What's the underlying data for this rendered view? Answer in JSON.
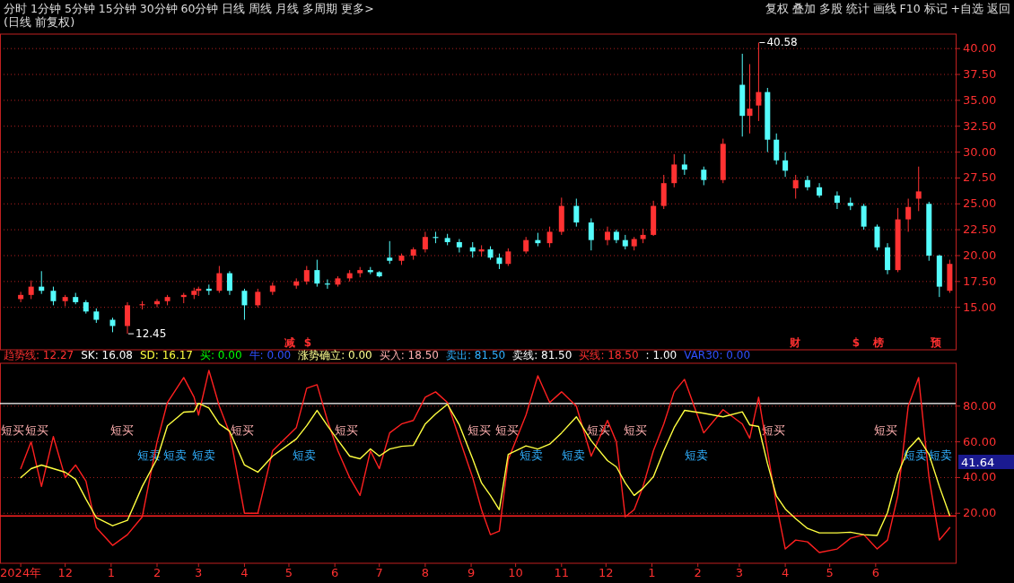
{
  "chart_data": [
    {
      "type": "candlestick",
      "title": "(日线 前复权)",
      "x": [
        "2024-11-01",
        "2024-11-08",
        "2024-11-15",
        "2024-11-23",
        "2024-12-01",
        "2024-12-08",
        "2024-12-15",
        "2024-12-22",
        "2025-01-02",
        "2025-01-12",
        "2025-01-22",
        "2025-02-01",
        "2025-02-08",
        "2025-02-19",
        "2025-02-26",
        "2025-03-01",
        "2025-03-08",
        "2025-03-15",
        "2025-03-22",
        "2025-04-01",
        "2025-04-10",
        "2025-04-20",
        "2025-05-06",
        "2025-05-13",
        "2025-05-20",
        "2025-05-27",
        "2025-06-03",
        "2025-06-11",
        "2025-06-18",
        "2025-06-25",
        "2025-07-01",
        "2025-07-08",
        "2025-07-16",
        "2025-07-24",
        "2025-08-01",
        "2025-08-08",
        "2025-08-16",
        "2025-08-24",
        "2025-09-02",
        "2025-09-08",
        "2025-09-14",
        "2025-09-20",
        "2025-09-26",
        "2025-10-08",
        "2025-10-16",
        "2025-10-24",
        "2025-11-01",
        "2025-11-11",
        "2025-11-21",
        "2025-12-02",
        "2025-12-08",
        "2025-12-14",
        "2025-12-20",
        "2025-12-26",
        "2026-01-02",
        "2026-01-09",
        "2026-01-16",
        "2026-01-23",
        "2026-02-05",
        "2026-02-18",
        "2026-03-03",
        "2026-03-08",
        "2026-03-14",
        "2026-03-20",
        "2026-03-26",
        "2026-04-01",
        "2026-04-08",
        "2026-04-16",
        "2026-04-24",
        "2026-05-06",
        "2026-05-15",
        "2026-05-24",
        "2026-06-02",
        "2026-06-09",
        "2026-06-16",
        "2026-06-23",
        "2026-06-30",
        "2026-07-07",
        "2026-07-14",
        "2026-07-21"
      ],
      "ohlc": [
        [
          15.8,
          16.5,
          15.5,
          16.2
        ],
        [
          16.2,
          17.6,
          15.8,
          17.0
        ],
        [
          17.0,
          18.5,
          16.3,
          16.6
        ],
        [
          16.6,
          17.0,
          15.2,
          15.6
        ],
        [
          15.6,
          16.2,
          15.1,
          16.0
        ],
        [
          16.0,
          16.4,
          15.3,
          15.5
        ],
        [
          15.5,
          15.7,
          14.4,
          14.6
        ],
        [
          14.6,
          14.9,
          13.5,
          13.8
        ],
        [
          13.8,
          14.0,
          12.6,
          13.2
        ],
        [
          13.2,
          15.5,
          12.45,
          15.2
        ],
        [
          15.2,
          15.6,
          14.8,
          15.3
        ],
        [
          15.3,
          15.8,
          15.0,
          15.6
        ],
        [
          15.6,
          16.2,
          15.2,
          16.0
        ],
        [
          16.0,
          16.4,
          15.4,
          16.2
        ],
        [
          16.2,
          16.9,
          15.8,
          16.6
        ],
        [
          16.6,
          17.0,
          16.1,
          16.8
        ],
        [
          16.8,
          17.2,
          16.2,
          16.6
        ],
        [
          16.6,
          19.0,
          16.4,
          18.3
        ],
        [
          18.3,
          18.5,
          16.2,
          16.6
        ],
        [
          16.6,
          16.8,
          13.8,
          15.2
        ],
        [
          15.2,
          16.8,
          15.0,
          16.5
        ],
        [
          16.5,
          17.4,
          16.2,
          17.1
        ],
        [
          17.1,
          17.8,
          16.8,
          17.5
        ],
        [
          17.5,
          19.0,
          17.2,
          18.6
        ],
        [
          18.6,
          19.6,
          17.0,
          17.3
        ],
        [
          17.3,
          17.7,
          16.8,
          17.2
        ],
        [
          17.2,
          18.0,
          17.0,
          17.8
        ],
        [
          17.8,
          18.6,
          17.5,
          18.3
        ],
        [
          18.3,
          18.9,
          17.9,
          18.6
        ],
        [
          18.6,
          18.9,
          18.2,
          18.4
        ],
        [
          18.4,
          18.5,
          17.9,
          18.0
        ],
        [
          19.8,
          21.4,
          19.2,
          19.5
        ],
        [
          19.5,
          20.2,
          19.1,
          20.0
        ],
        [
          20.0,
          20.8,
          19.6,
          20.6
        ],
        [
          20.6,
          22.3,
          20.3,
          21.8
        ],
        [
          21.8,
          22.3,
          21.2,
          21.7
        ],
        [
          21.7,
          22.1,
          21.0,
          21.3
        ],
        [
          21.3,
          21.6,
          20.3,
          20.8
        ],
        [
          20.8,
          21.3,
          19.8,
          20.4
        ],
        [
          20.4,
          21.0,
          19.9,
          20.6
        ],
        [
          20.6,
          20.9,
          19.6,
          19.8
        ],
        [
          19.8,
          20.2,
          18.7,
          19.2
        ],
        [
          19.2,
          20.7,
          19.0,
          20.4
        ],
        [
          20.4,
          21.8,
          20.2,
          21.5
        ],
        [
          21.5,
          22.2,
          20.9,
          21.2
        ],
        [
          21.2,
          22.8,
          20.8,
          22.3
        ],
        [
          22.3,
          25.6,
          22.0,
          24.8
        ],
        [
          24.8,
          25.5,
          22.8,
          23.2
        ],
        [
          23.2,
          23.6,
          20.5,
          21.5
        ],
        [
          21.5,
          22.8,
          21.0,
          22.3
        ],
        [
          22.3,
          22.5,
          21.2,
          21.5
        ],
        [
          21.5,
          22.0,
          20.6,
          20.9
        ],
        [
          20.9,
          21.8,
          20.5,
          21.6
        ],
        [
          21.6,
          22.6,
          21.2,
          22.0
        ],
        [
          22.0,
          25.3,
          21.9,
          24.8
        ],
        [
          24.8,
          27.8,
          24.5,
          27.0
        ],
        [
          27.0,
          29.8,
          26.6,
          28.8
        ],
        [
          28.8,
          29.8,
          27.8,
          28.3
        ],
        [
          28.3,
          28.6,
          26.8,
          27.3
        ],
        [
          27.3,
          31.3,
          27.0,
          30.8
        ],
        [
          36.5,
          39.5,
          31.5,
          33.5
        ],
        [
          33.5,
          38.5,
          31.8,
          34.2
        ],
        [
          34.5,
          40.58,
          33.0,
          35.8
        ],
        [
          35.8,
          36.2,
          30.0,
          31.2
        ],
        [
          31.2,
          31.8,
          28.8,
          29.2
        ],
        [
          29.2,
          30.0,
          27.6,
          28.2
        ],
        [
          26.5,
          27.8,
          25.5,
          27.3
        ],
        [
          27.3,
          27.7,
          26.3,
          26.6
        ],
        [
          26.6,
          27.0,
          25.6,
          25.8
        ],
        [
          25.8,
          26.2,
          24.5,
          25.1
        ],
        [
          25.1,
          25.6,
          24.4,
          24.8
        ],
        [
          24.8,
          25.0,
          22.5,
          22.8
        ],
        [
          22.8,
          23.0,
          20.5,
          20.8
        ],
        [
          20.8,
          21.2,
          18.2,
          18.6
        ],
        [
          18.6,
          24.6,
          18.4,
          23.5
        ],
        [
          23.5,
          25.5,
          22.3,
          24.7
        ],
        [
          25.5,
          28.6,
          24.3,
          26.2
        ],
        [
          25.0,
          25.2,
          19.5,
          20.0
        ],
        [
          20.0,
          20.1,
          16.0,
          17.0
        ],
        [
          16.6,
          19.6,
          16.4,
          19.2
        ]
      ],
      "colors": [
        "#ff3232",
        "#ff3232",
        "#54fcfc",
        "#54fcfc",
        "#ff3232",
        "#54fcfc",
        "#54fcfc",
        "#54fcfc",
        "#54fcfc",
        "#ff3232",
        "#ff3232",
        "#ff3232",
        "#ff3232",
        "#ff3232",
        "#ff3232",
        "#ff3232",
        "#54fcfc",
        "#ff3232",
        "#54fcfc",
        "#54fcfc",
        "#ff3232",
        "#ff3232",
        "#ff3232",
        "#ff3232",
        "#54fcfc",
        "#54fcfc",
        "#ff3232",
        "#ff3232",
        "#ff3232",
        "#54fcfc",
        "#54fcfc",
        "#54fcfc",
        "#ff3232",
        "#ff3232",
        "#ff3232",
        "#54fcfc",
        "#54fcfc",
        "#54fcfc",
        "#54fcfc",
        "#ff3232",
        "#54fcfc",
        "#54fcfc",
        "#ff3232",
        "#ff3232",
        "#54fcfc",
        "#ff3232",
        "#ff3232",
        "#54fcfc",
        "#54fcfc",
        "#ff3232",
        "#54fcfc",
        "#54fcfc",
        "#ff3232",
        "#ff3232",
        "#ff3232",
        "#ff3232",
        "#ff3232",
        "#54fcfc",
        "#54fcfc",
        "#ff3232",
        "#54fcfc",
        "#ff3232",
        "#ff3232",
        "#54fcfc",
        "#54fcfc",
        "#54fcfc",
        "#ff3232",
        "#54fcfc",
        "#54fcfc",
        "#54fcfc",
        "#54fcfc",
        "#54fcfc",
        "#54fcfc",
        "#54fcfc",
        "#ff3232",
        "#ff3232",
        "#ff3232",
        "#54fcfc",
        "#54fcfc",
        "#ff3232"
      ],
      "xlim": [
        "2024-10-18",
        "2026-07-25"
      ],
      "ylim": [
        10.9,
        41.4
      ],
      "yticks": [
        {
          "value": 15,
          "label": "15.00"
        },
        {
          "value": 17.5,
          "label": "17.50"
        },
        {
          "value": 20,
          "label": "20.00"
        },
        {
          "value": 22.5,
          "label": "22.50"
        },
        {
          "value": 25,
          "label": "25.00"
        },
        {
          "value": 27.5,
          "label": "27.50"
        },
        {
          "value": 30,
          "label": "30.00"
        },
        {
          "value": 32.5,
          "label": "32.50"
        },
        {
          "value": 35,
          "label": "35.00"
        },
        {
          "value": 37.5,
          "label": "37.50"
        },
        {
          "value": 40,
          "label": "40.00"
        }
      ],
      "grid": "y",
      "tick_labels": "y",
      "annotations": [
        "分时  1分钟  5分钟  15分钟  30分钟  60分钟  日线  周线  月线  多周期  更多>",
        "复权  叠加  多股  统计  画线  F10  标记  +自选  返回",
        "减",
        "$",
        "财",
        "$",
        "榜",
        "预",
        {
          "text": "40.58",
          "x": "2026-03-14",
          "y": 40.58
        },
        {
          "text": "12.45",
          "x": "2025-01-12",
          "y": 12.45
        }
      ]
    },
    {
      "type": "line",
      "x": [
        "2024-11-01",
        "2024-11-08",
        "2024-11-15",
        "2024-11-23",
        "2024-12-01",
        "2024-12-08",
        "2024-12-15",
        "2024-12-22",
        "2025-01-02",
        "2025-01-12",
        "2025-01-22",
        "2025-02-01",
        "2025-02-08",
        "2025-02-19",
        "2025-02-26",
        "2025-03-01",
        "2025-03-08",
        "2025-03-15",
        "2025-03-22",
        "2025-04-01",
        "2025-04-10",
        "2025-04-20",
        "2025-05-06",
        "2025-05-13",
        "2025-05-20",
        "2025-05-27",
        "2025-06-03",
        "2025-06-11",
        "2025-06-18",
        "2025-06-25",
        "2025-07-01",
        "2025-07-08",
        "2025-07-16",
        "2025-07-24",
        "2025-08-01",
        "2025-08-08",
        "2025-08-16",
        "2025-08-24",
        "2025-09-02",
        "2025-09-08",
        "2025-09-14",
        "2025-09-20",
        "2025-09-26",
        "2025-10-08",
        "2025-10-16",
        "2025-10-24",
        "2025-11-01",
        "2025-11-11",
        "2025-11-21",
        "2025-12-02",
        "2025-12-08",
        "2025-12-14",
        "2025-12-20",
        "2025-12-26",
        "2026-01-02",
        "2026-01-09",
        "2026-01-16",
        "2026-01-23",
        "2026-02-05",
        "2026-02-18",
        "2026-03-03",
        "2026-03-08",
        "2026-03-14",
        "2026-03-20",
        "2026-03-26",
        "2026-04-01",
        "2026-04-08",
        "2026-04-16",
        "2026-04-24",
        "2026-05-06",
        "2026-05-15",
        "2026-05-24",
        "2026-06-02",
        "2026-06-09",
        "2026-06-16",
        "2026-06-23",
        "2026-06-30",
        "2026-07-07",
        "2026-07-14",
        "2026-07-21"
      ],
      "series": [
        {
          "color": "#ff2020",
          "values": [
            45,
            60,
            35,
            63,
            40,
            47,
            38,
            12,
            2,
            8,
            18,
            60,
            82,
            96,
            85,
            75,
            100,
            80,
            65,
            20,
            20,
            55,
            68,
            90,
            92,
            72,
            55,
            40,
            30,
            55,
            45,
            65,
            70,
            72,
            85,
            88,
            82,
            62,
            40,
            22,
            8,
            10,
            50,
            75,
            97,
            82,
            88,
            80,
            52,
            72,
            60,
            18,
            22,
            35,
            55,
            70,
            88,
            95,
            65,
            78,
            70,
            62,
            85,
            55,
            25,
            0,
            5,
            4,
            -2,
            0,
            6,
            8,
            0,
            5,
            30,
            80,
            96,
            40,
            5,
            12
          ]
        },
        {
          "color": "#ffff40",
          "values": [
            40,
            45,
            47,
            45,
            43,
            39,
            28,
            17.6,
            13,
            16,
            35,
            50.5,
            69,
            76.6,
            77,
            81.6,
            79,
            70,
            66,
            47,
            43,
            52,
            61.6,
            69,
            77.6,
            69,
            61,
            52,
            50.5,
            56,
            52,
            56,
            57.5,
            58,
            70,
            75.6,
            81,
            69.5,
            50.5,
            37,
            30,
            22,
            53,
            57.7,
            56,
            58.7,
            65,
            74,
            60.6,
            49.5,
            46,
            37,
            30,
            34,
            40.5,
            55,
            68,
            77.6,
            76,
            74,
            76.8,
            69.5,
            68.6,
            47.8,
            29.7,
            22.4,
            17,
            11.5,
            9,
            9,
            9.4,
            8,
            7.6,
            20.4,
            42,
            56,
            62.3,
            53,
            35,
            18.8
          ]
        }
      ],
      "xlim": [
        "2024-10-18",
        "2026-07-25"
      ],
      "ylim": [
        -8,
        104
      ],
      "xticks": [
        {
          "value": "2024-11-01",
          "label": "2024年"
        },
        {
          "value": "2024-12-01",
          "label": "12"
        },
        {
          "value": "2025-01-01",
          "label": "1"
        },
        {
          "value": "2025-02-01",
          "label": "2"
        },
        {
          "value": "2025-03-01",
          "label": "3"
        },
        {
          "value": "2025-04-01",
          "label": "4"
        },
        {
          "value": "2025-05-01",
          "label": "5"
        },
        {
          "value": "2025-06-01",
          "label": "6"
        },
        {
          "value": "2025-07-01",
          "label": "7"
        },
        {
          "value": "2025-08-01",
          "label": "8"
        },
        {
          "value": "2025-09-01",
          "label": "9"
        },
        {
          "value": "2025-10-01",
          "label": "10"
        },
        {
          "value": "2025-11-01",
          "label": "11"
        },
        {
          "value": "2025-12-01",
          "label": "12"
        },
        {
          "value": "2026-01-01",
          "label": "1"
        },
        {
          "value": "2026-02-01",
          "label": "2"
        },
        {
          "value": "2026-03-01",
          "label": "3"
        },
        {
          "value": "2026-04-01",
          "label": "4"
        },
        {
          "value": "2026-05-01",
          "label": "5"
        },
        {
          "value": "2026-06-01",
          "label": "6"
        }
      ],
      "yticks": [
        {
          "value": 20,
          "label": "20.00"
        },
        {
          "value": 40,
          "label": "40.00"
        },
        {
          "value": 60,
          "label": "60.00"
        },
        {
          "value": 80,
          "label": "80.00"
        }
      ],
      "grid": "y",
      "ref_lines": [
        {
          "axis": "y",
          "value": 81.5,
          "color": "#ffffff"
        },
        {
          "axis": "y",
          "value": 18.5,
          "color": "#ff2020"
        }
      ],
      "annotations": [
        "趋势线: 12.27",
        "SK: 16.08",
        "SD: 16.17",
        "买: 0.00",
        "牛: 0.00",
        "涨势确立: 0.00",
        "买入: 18.50",
        "卖出: 81.50",
        "卖线: 81.50",
        "买线: 18.50",
        ": 1.00",
        "VAR30: 0.00",
        "41.64",
        "短买",
        "短买",
        "短买",
        "短买",
        "短买",
        "短买",
        "短买",
        "短买",
        "短买",
        "短买",
        "短买",
        "短卖",
        "短卖",
        "短卖",
        "短卖",
        "短卖",
        "短卖",
        "短卖",
        "短卖",
        "短卖"
      ]
    }
  ]
}
